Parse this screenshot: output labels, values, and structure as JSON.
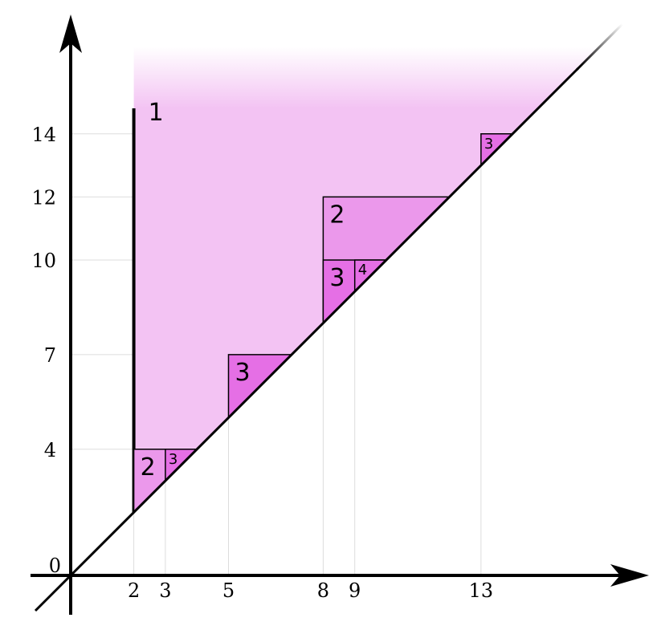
{
  "x_ticks": [
    2,
    3,
    5,
    8,
    9,
    13
  ],
  "y_ticks": [
    0,
    4,
    7,
    10,
    12,
    14
  ],
  "regions": [
    {
      "name": "region-1",
      "label": "1",
      "level": 1,
      "x": 2,
      "y": 14.5,
      "open_top": true
    },
    {
      "name": "region-2a",
      "label": "2",
      "level": 2,
      "x": 2,
      "y": 4,
      "corner_x": 2,
      "corner_y": 4
    },
    {
      "name": "region-3a",
      "label": "3",
      "level": 3,
      "x": 3,
      "y": 4,
      "corner_x": 3,
      "corner_y": 4
    },
    {
      "name": "region-3b",
      "label": "3",
      "level": 3,
      "x": 5,
      "y": 7,
      "corner_x": 5,
      "corner_y": 7
    },
    {
      "name": "region-2b",
      "label": "2",
      "level": 2,
      "x": 8,
      "y": 12,
      "corner_x": 8,
      "corner_y": 12
    },
    {
      "name": "region-3c",
      "label": "3",
      "level": 3,
      "x": 8,
      "y": 10,
      "corner_x": 8,
      "corner_y": 10
    },
    {
      "name": "region-4",
      "label": "4",
      "level": 4,
      "x": 9,
      "y": 10,
      "corner_x": 9,
      "corner_y": 10
    },
    {
      "name": "region-3d",
      "label": "3",
      "level": 3,
      "x": 13,
      "y": 14,
      "corner_x": 13,
      "corner_y": 14
    }
  ],
  "colors": {
    "level1": "#f3c3f3",
    "level2": "#eb98eb",
    "level3": "#e56fe5",
    "level4": "#e56fe5",
    "grid": "#dddddd",
    "axis": "#000000"
  }
}
